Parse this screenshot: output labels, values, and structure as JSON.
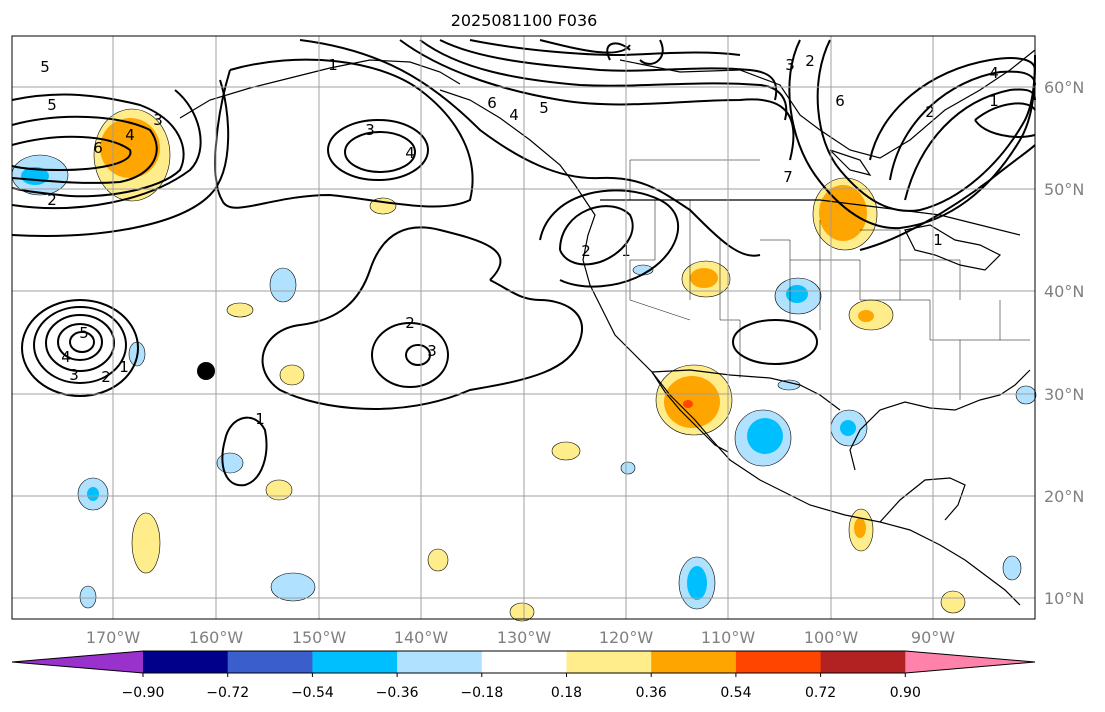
{
  "title": "2025081100 F036",
  "lon_labels": [
    "170°W",
    "160°W",
    "150°W",
    "140°W",
    "130°W",
    "120°W",
    "110°W",
    "100°W",
    "90°W"
  ],
  "lat_labels": [
    "60°N",
    "50°N",
    "40°N",
    "30°N",
    "20°N",
    "10°N"
  ],
  "colorbar": {
    "colors": [
      "#9932cc",
      "#00008b",
      "#3a5fcd",
      "#00bfff",
      "#b0e2ff",
      "#ffffff",
      "#ffec8b",
      "#ffa500",
      "#ff4500",
      "#b22222",
      "#ff82ab"
    ],
    "tick_labels": [
      "−0.90",
      "−0.72",
      "−0.54",
      "−0.36",
      "−0.18",
      "0.18",
      "0.36",
      "0.54",
      "0.72",
      "0.90"
    ]
  },
  "contour_labels": [
    "5",
    "5",
    "6",
    "4",
    "3",
    "2",
    "1",
    "3",
    "4",
    "6",
    "4",
    "5",
    "3",
    "2",
    "6",
    "7",
    "4",
    "2",
    "1",
    "1",
    "2",
    "1",
    "2",
    "3",
    "5",
    "4",
    "3",
    "2",
    "1",
    "1"
  ],
  "colors": {
    "land": "#000000",
    "grid": "#a0a0a0",
    "marker": "#000000"
  }
}
